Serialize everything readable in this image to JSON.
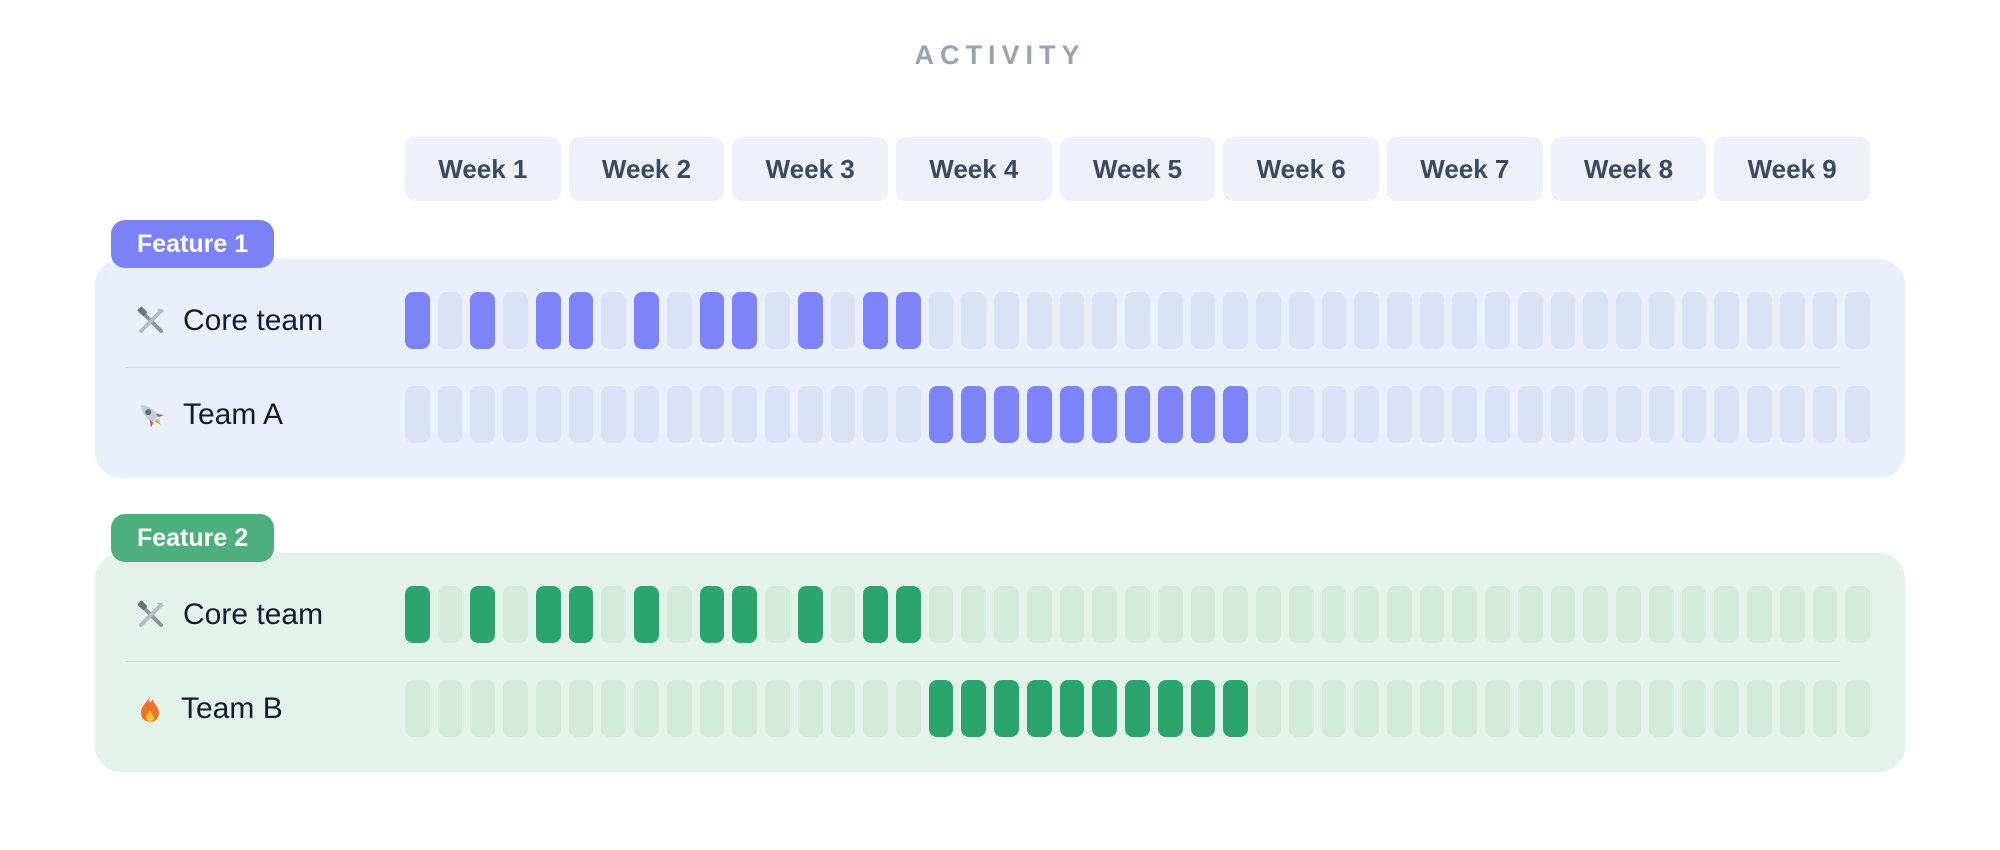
{
  "title": "ACTIVITY",
  "weeks": [
    "Week 1",
    "Week 2",
    "Week 3",
    "Week 4",
    "Week 5",
    "Week 6",
    "Week 7",
    "Week 8",
    "Week 9"
  ],
  "days_per_week": 5,
  "total_cells": 45,
  "colors": {
    "title_text": "#9aa3b2",
    "week_chip_bg": "#eef1f9",
    "week_chip_text": "#3a4a61",
    "row_label_text": "#0e1b33",
    "feature1_accent": "#7c82f6",
    "feature1_cell_active": "#7d83f8",
    "feature1_cell_inactive": "#dae2f5",
    "feature1_panel_bg": "#e9f0fc",
    "feature2_accent": "#4caf7d",
    "feature2_cell_active": "#2ca56c",
    "feature2_cell_inactive": "#d2ebdb",
    "feature2_panel_bg": "#e4f3ea"
  },
  "features": [
    {
      "badge": "Feature 1",
      "rows": [
        {
          "icon": "tools-icon",
          "label": "Core team",
          "pattern": "101011010110101100000000000000000000000000000"
        },
        {
          "icon": "rocket-icon",
          "label": "Team A",
          "pattern": "000000000000000011111111110000000000000000000"
        }
      ]
    },
    {
      "badge": "Feature 2",
      "rows": [
        {
          "icon": "tools-icon",
          "label": "Core team",
          "pattern": "101011010110101100000000000000000000000000000"
        },
        {
          "icon": "fire-icon",
          "label": "Team B",
          "pattern": "000000000000000011111111110000000000000000000"
        }
      ]
    }
  ],
  "chart_data": {
    "type": "heatmap",
    "title": "ACTIVITY",
    "x_categories": [
      "Week 1",
      "Week 2",
      "Week 3",
      "Week 4",
      "Week 5",
      "Week 6",
      "Week 7",
      "Week 8",
      "Week 9"
    ],
    "cells_per_week": 5,
    "total_cells": 45,
    "legend": "off",
    "groups": [
      {
        "name": "Feature 1",
        "active_color": "#7d83f8",
        "series": [
          {
            "name": "Core team",
            "active_cells": [
              1,
              3,
              5,
              6,
              8,
              10,
              11,
              13,
              15,
              16
            ]
          },
          {
            "name": "Team A",
            "active_cells": [
              17,
              18,
              19,
              20,
              21,
              22,
              23,
              24,
              25,
              26
            ]
          }
        ]
      },
      {
        "name": "Feature 2",
        "active_color": "#2ca56c",
        "series": [
          {
            "name": "Core team",
            "active_cells": [
              1,
              3,
              5,
              6,
              8,
              10,
              11,
              13,
              15,
              16
            ]
          },
          {
            "name": "Team B",
            "active_cells": [
              17,
              18,
              19,
              20,
              21,
              22,
              23,
              24,
              25,
              26
            ]
          }
        ]
      }
    ]
  }
}
